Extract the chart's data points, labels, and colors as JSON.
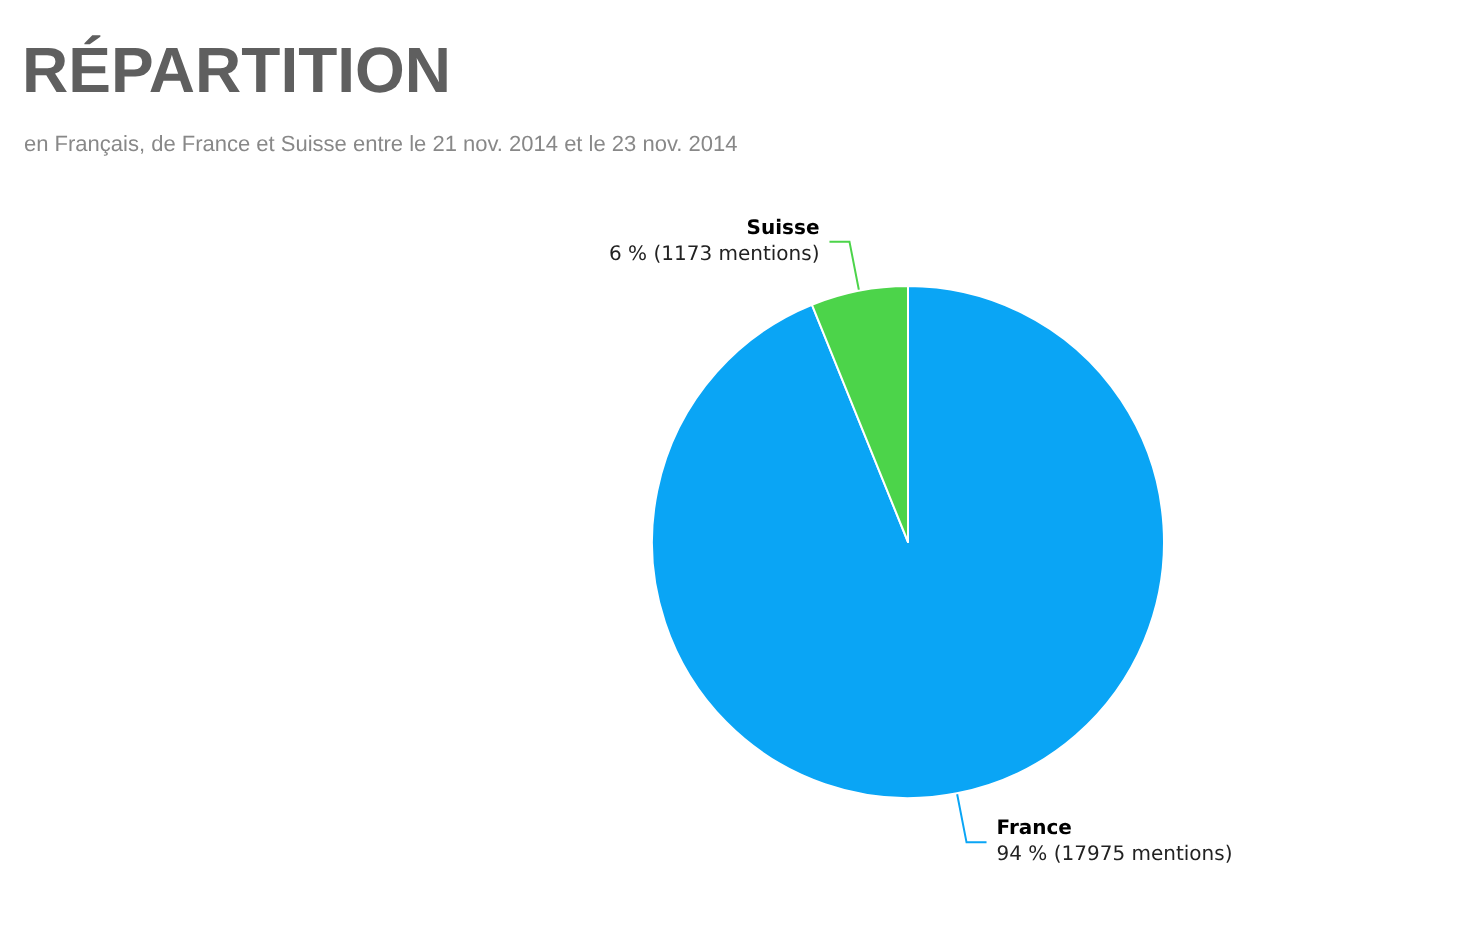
{
  "chart_data": {
    "type": "pie",
    "title": "RÉPARTITION",
    "subtitle": "en Français, de France et Suisse entre le 21 nov. 2014 et le 23 nov. 2014",
    "categories": [
      "France",
      "Suisse"
    ],
    "values": [
      17975,
      1173
    ],
    "value_labels": [
      "94 % (17975 mentions)",
      "6 % (1173 mentions)"
    ],
    "colors": [
      "#0aa5f5",
      "#4cd44a"
    ]
  }
}
